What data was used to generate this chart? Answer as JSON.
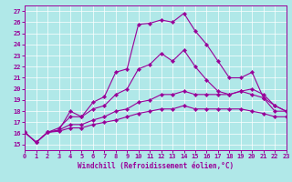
{
  "bg_color": "#b0e8e8",
  "line_color": "#990099",
  "xlabel": "Windchill (Refroidissement éolien,°C)",
  "xlim": [
    0,
    23
  ],
  "ylim": [
    14.5,
    27.5
  ],
  "x_ticks": [
    0,
    1,
    2,
    3,
    4,
    5,
    6,
    7,
    8,
    9,
    10,
    11,
    12,
    13,
    14,
    15,
    16,
    17,
    18,
    19,
    20,
    21,
    22,
    23
  ],
  "y_ticks": [
    15,
    16,
    17,
    18,
    19,
    20,
    21,
    22,
    23,
    24,
    25,
    26,
    27
  ],
  "lines": [
    [
      16.1,
      15.2,
      16.1,
      16.3,
      18.0,
      17.5,
      18.8,
      19.3,
      21.5,
      21.8,
      25.8,
      25.9,
      26.2,
      26.0,
      26.8,
      25.2,
      24.0,
      22.5,
      21.0,
      21.0,
      21.5,
      19.2,
      18.0,
      18.0
    ],
    [
      16.1,
      15.2,
      16.1,
      16.5,
      17.5,
      17.5,
      18.2,
      18.5,
      19.5,
      20.0,
      21.8,
      22.2,
      23.2,
      22.5,
      23.5,
      22.0,
      20.8,
      19.8,
      19.5,
      19.8,
      20.0,
      19.5,
      18.5,
      18.0
    ],
    [
      16.1,
      15.2,
      16.1,
      16.3,
      16.8,
      16.8,
      17.2,
      17.5,
      18.0,
      18.2,
      18.8,
      19.0,
      19.5,
      19.5,
      19.8,
      19.5,
      19.5,
      19.5,
      19.5,
      19.8,
      19.5,
      19.2,
      18.5,
      18.0
    ],
    [
      16.1,
      15.2,
      16.1,
      16.2,
      16.5,
      16.5,
      16.8,
      17.0,
      17.2,
      17.5,
      17.8,
      18.0,
      18.2,
      18.2,
      18.5,
      18.2,
      18.2,
      18.2,
      18.2,
      18.2,
      18.0,
      17.8,
      17.5,
      17.5
    ]
  ]
}
